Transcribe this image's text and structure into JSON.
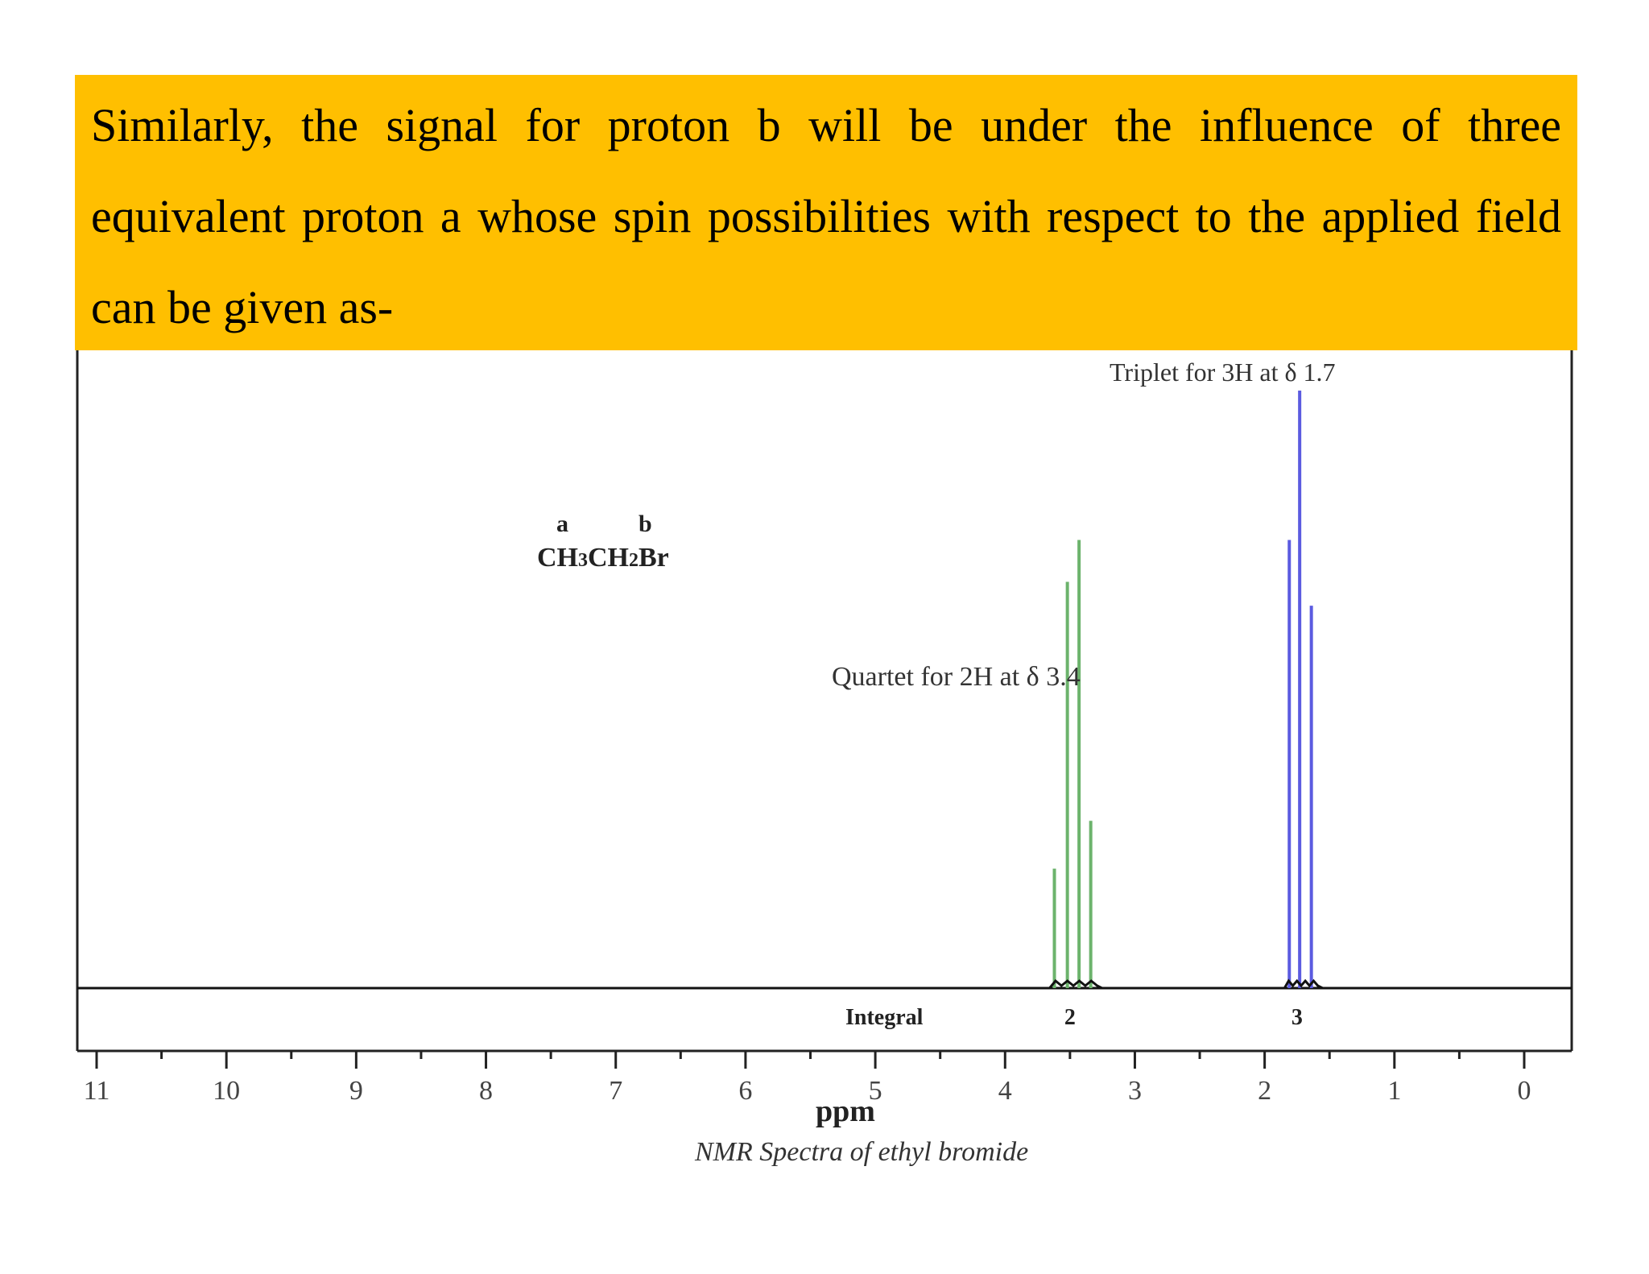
{
  "banner": {
    "text": "Similarly, the signal for proton b will be under the influence of three equivalent proton a whose spin possibilities with respect to the applied field can be given as-",
    "color": "#FFBF00"
  },
  "chart_data": {
    "type": "line",
    "title": "NMR Spectra of ethyl bromide",
    "xlabel": "ppm",
    "ylabel": "",
    "xlim": [
      11,
      0
    ],
    "x_reversed": true,
    "x_ticks": [
      "11",
      "10",
      "9",
      "8",
      "7",
      "6",
      "5",
      "4",
      "3",
      "2",
      "1",
      "0"
    ],
    "molecule": {
      "label_a": "a",
      "label_b": "b",
      "formula_parts": [
        "CH",
        "3",
        "CH",
        "2",
        "Br"
      ]
    },
    "series": [
      {
        "color": "#6cb36c",
        "peaks": [
          {
            "x": 3.62,
            "y": 0.2
          },
          {
            "x": 3.52,
            "y": 0.68
          },
          {
            "x": 3.43,
            "y": 0.75
          },
          {
            "x": 3.34,
            "y": 0.28
          }
        ]
      },
      {
        "color": "#5b5be0",
        "peaks": [
          {
            "x": 1.81,
            "y": 0.75
          },
          {
            "x": 1.73,
            "y": 1.0
          },
          {
            "x": 1.64,
            "y": 0.64
          }
        ]
      }
    ],
    "annotations": [
      {
        "text": "Triplet for 3H at δ 1.7"
      },
      {
        "text": "Quartet for 2H at δ 3.4"
      }
    ],
    "integral": {
      "label": "Integral",
      "values": [
        {
          "x": 3.5,
          "text": "2"
        },
        {
          "x": 1.75,
          "text": "3"
        }
      ]
    }
  }
}
